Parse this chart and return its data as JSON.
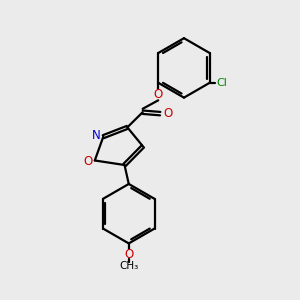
{
  "bg_color": "#ebebeb",
  "bond_color": "#000000",
  "N_color": "#0000cc",
  "O_color": "#cc0000",
  "Cl_color": "#008800",
  "lw": 1.6,
  "dbo": 0.055,
  "fig_w": 3.0,
  "fig_h": 3.0,
  "dpi": 100,
  "xlim": [
    0,
    10
  ],
  "ylim": [
    0,
    10.5
  ]
}
